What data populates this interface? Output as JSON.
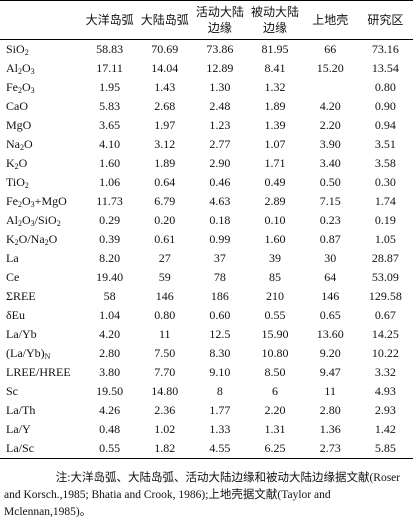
{
  "table": {
    "header": [
      "大洋岛弧",
      "大陆岛弧",
      "活动大陆边缘",
      "被动大陆边缘",
      "上地壳",
      "研究区"
    ],
    "rows": [
      {
        "label": [
          "SiO",
          "2"
        ],
        "values": [
          "58.83",
          "70.69",
          "73.86",
          "81.95",
          "66",
          "73.16"
        ]
      },
      {
        "label": [
          "Al",
          "2",
          "O",
          "3"
        ],
        "values": [
          "17.11",
          "14.04",
          "12.89",
          "8.41",
          "15.20",
          "13.54"
        ]
      },
      {
        "label": [
          "Fe",
          "2",
          "O",
          "3"
        ],
        "values": [
          "1.95",
          "1.43",
          "1.30",
          "1.32",
          null,
          "0.80"
        ]
      },
      {
        "label": [
          "CaO"
        ],
        "values": [
          "5.83",
          "2.68",
          "2.48",
          "1.89",
          "4.20",
          "0.90"
        ]
      },
      {
        "label": [
          "MgO"
        ],
        "values": [
          "3.65",
          "1.97",
          "1.23",
          "1.39",
          "2.20",
          "0.94"
        ]
      },
      {
        "label": [
          "Na",
          "2",
          "O"
        ],
        "values": [
          "4.10",
          "3.12",
          "2.77",
          "1.07",
          "3.90",
          "3.51"
        ]
      },
      {
        "label": [
          "K",
          "2",
          "O"
        ],
        "values": [
          "1.60",
          "1.89",
          "2.90",
          "1.71",
          "3.40",
          "3.58"
        ]
      },
      {
        "label": [
          "TiO",
          "2"
        ],
        "values": [
          "1.06",
          "0.64",
          "0.46",
          "0.49",
          "0.50",
          "0.30"
        ]
      },
      {
        "label": [
          "Fe",
          "2",
          "O",
          "3",
          "+MgO"
        ],
        "values": [
          "11.73",
          "6.79",
          "4.63",
          "2.89",
          "7.15",
          "1.74"
        ]
      },
      {
        "label": [
          "Al",
          "2",
          "O",
          "3",
          "/SiO",
          "2"
        ],
        "values": [
          "0.29",
          "0.20",
          "0.18",
          "0.10",
          "0.23",
          "0.19"
        ]
      },
      {
        "label": [
          "K",
          "2",
          "O/Na",
          "2",
          "O"
        ],
        "values": [
          "0.39",
          "0.61",
          "0.99",
          "1.60",
          "0.87",
          "1.05"
        ]
      },
      {
        "label": [
          "La"
        ],
        "values": [
          "8.20",
          "27",
          "37",
          "39",
          "30",
          "28.87"
        ]
      },
      {
        "label": [
          "Ce"
        ],
        "values": [
          "19.40",
          "59",
          "78",
          "85",
          "64",
          "53.09"
        ]
      },
      {
        "label": [
          "ΣREE"
        ],
        "values": [
          "58",
          "146",
          "186",
          "210",
          "146",
          "129.58"
        ]
      },
      {
        "label": [
          "δEu"
        ],
        "values": [
          "1.04",
          "0.80",
          "0.60",
          "0.55",
          "0.65",
          "0.67"
        ]
      },
      {
        "label": [
          "La/Yb"
        ],
        "values": [
          "4.20",
          "11",
          "12.5",
          "15.90",
          "13.60",
          "14.25"
        ]
      },
      {
        "label": [
          "(La/Yb)",
          "N"
        ],
        "values": [
          "2.80",
          "7.50",
          "8.30",
          "10.80",
          "9.20",
          "10.22"
        ]
      },
      {
        "label": [
          "LREE/HREE"
        ],
        "values": [
          "3.80",
          "7.70",
          "9.10",
          "8.50",
          "9.47",
          "3.32"
        ]
      },
      {
        "label": [
          "Sc"
        ],
        "values": [
          "19.50",
          "14.80",
          "8",
          "6",
          "11",
          "4.93"
        ]
      },
      {
        "label": [
          "La/Th"
        ],
        "values": [
          "4.26",
          "2.36",
          "1.77",
          "2.20",
          "2.80",
          "2.93"
        ]
      },
      {
        "label": [
          "La/Y"
        ],
        "values": [
          "0.48",
          "1.02",
          "1.33",
          "1.31",
          "1.36",
          "1.42"
        ]
      },
      {
        "label": [
          "La/Sc"
        ],
        "values": [
          "0.55",
          "1.82",
          "4.55",
          "6.25",
          "2.73",
          "5.85"
        ]
      }
    ]
  },
  "note": "注:大洋岛弧、大陆岛弧、活动大陆边缘和被动大陆边缘据文献(Roser and Korsch.,1985; Bhatia and Crook, 1986);上地壳据文献(Taylor and Mclennan,1985)。"
}
